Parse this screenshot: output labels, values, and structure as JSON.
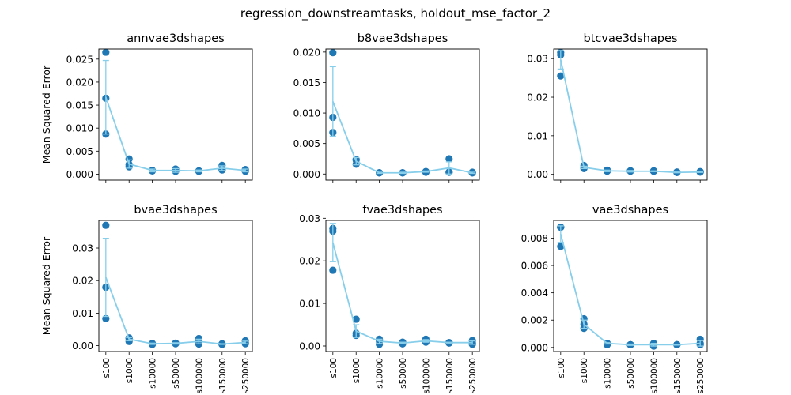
{
  "suptitle": "regression_downstreamtasks, holdout_mse_factor_2",
  "colors": {
    "line": "#87CEEB",
    "point": "#1f77b4",
    "axis": "#000000"
  },
  "chart_data": [
    {
      "type": "line",
      "title": "annvae3dshapes",
      "ylabel": "Mean Squared Error",
      "categories": [
        "s100",
        "s1000",
        "s10000",
        "s50000",
        "s100000",
        "s150000",
        "s250000"
      ],
      "ylim": [
        -0.0013,
        0.0272
      ],
      "yticks": [
        0.0,
        0.005,
        0.01,
        0.015,
        0.02,
        0.025
      ],
      "ytick_labels": [
        "0.000",
        "0.005",
        "0.010",
        "0.015",
        "0.020",
        "0.025"
      ],
      "show_xticklabels": false,
      "mean": [
        0.0167,
        0.0022,
        0.0008,
        0.0008,
        0.0007,
        0.0013,
        0.0008
      ],
      "err": [
        0.008,
        0.0009,
        0.0003,
        0.0004,
        0.0002,
        0.0005,
        0.0003
      ],
      "points": [
        [
          0.0265,
          0.0087,
          0.0165
        ],
        [
          0.0033,
          0.0016,
          0.0021
        ],
        [
          0.0008,
          0.0008,
          0.0007
        ],
        [
          0.0011,
          0.0007,
          0.0006
        ],
        [
          0.0007,
          0.0006,
          0.0007
        ],
        [
          0.0019,
          0.001,
          0.0009
        ],
        [
          0.001,
          0.0006,
          0.0007
        ]
      ]
    },
    {
      "type": "line",
      "title": "b8vae3dshapes",
      "ylabel": "",
      "categories": [
        "s100",
        "s1000",
        "s10000",
        "s50000",
        "s100000",
        "s150000",
        "s250000"
      ],
      "ylim": [
        -0.001,
        0.0205
      ],
      "yticks": [
        0.0,
        0.005,
        0.01,
        0.015,
        0.02
      ],
      "ytick_labels": [
        "0.000",
        "0.005",
        "0.010",
        "0.015",
        "0.020"
      ],
      "show_xticklabels": false,
      "mean": [
        0.0119,
        0.0021,
        0.0002,
        0.0002,
        0.0004,
        0.001,
        0.0002
      ],
      "err": [
        0.0057,
        0.0006,
        0.0001,
        0.0001,
        0.0001,
        0.001,
        0.0001
      ],
      "points": [
        [
          0.0199,
          0.0068,
          0.0093
        ],
        [
          0.0024,
          0.0016,
          0.0023
        ],
        [
          0.0002,
          0.0002,
          0.0002
        ],
        [
          0.0002,
          0.0002,
          0.0002
        ],
        [
          0.0004,
          0.0003,
          0.0004
        ],
        [
          0.0025,
          0.0003,
          0.0003
        ],
        [
          0.0002,
          0.0002,
          0.0003
        ]
      ]
    },
    {
      "type": "line",
      "title": "btcvae3dshapes",
      "ylabel": "",
      "categories": [
        "s100",
        "s1000",
        "s10000",
        "s50000",
        "s100000",
        "s150000",
        "s250000"
      ],
      "ylim": [
        -0.0015,
        0.0325
      ],
      "yticks": [
        0.0,
        0.01,
        0.02,
        0.03
      ],
      "ytick_labels": [
        "0.00",
        "0.01",
        "0.02",
        "0.03"
      ],
      "show_xticklabels": false,
      "mean": [
        0.0297,
        0.0018,
        0.0009,
        0.0008,
        0.0008,
        0.0005,
        0.0006
      ],
      "err": [
        0.0024,
        0.0003,
        0.0002,
        0.0002,
        0.0001,
        0.0001,
        0.0001
      ],
      "points": [
        [
          0.0316,
          0.0255,
          0.031
        ],
        [
          0.0023,
          0.0015,
          0.0018
        ],
        [
          0.0011,
          0.0008,
          0.0009
        ],
        [
          0.0009,
          0.0008,
          0.0009
        ],
        [
          0.0009,
          0.0008,
          0.0008
        ],
        [
          0.0005,
          0.0005,
          0.0006
        ],
        [
          0.0006,
          0.0006,
          0.0007
        ]
      ]
    },
    {
      "type": "line",
      "title": "bvae3dshapes",
      "ylabel": "Mean Squared Error",
      "categories": [
        "s100",
        "s1000",
        "s10000",
        "s50000",
        "s100000",
        "s150000",
        "s250000"
      ],
      "ylim": [
        -0.0018,
        0.0385
      ],
      "yticks": [
        0.0,
        0.01,
        0.02,
        0.03
      ],
      "ytick_labels": [
        "0.00",
        "0.01",
        "0.02",
        "0.03"
      ],
      "show_xticklabels": true,
      "mean": [
        0.021,
        0.002,
        0.0006,
        0.0007,
        0.0013,
        0.0005,
        0.001
      ],
      "err": [
        0.012,
        0.0005,
        0.0002,
        0.0002,
        0.0007,
        0.0001,
        0.0004
      ],
      "points": [
        [
          0.037,
          0.0083,
          0.018
        ],
        [
          0.0024,
          0.0013,
          0.0022
        ],
        [
          0.0006,
          0.0004,
          0.0007
        ],
        [
          0.0008,
          0.0006,
          0.0007
        ],
        [
          0.0022,
          0.0005,
          0.0013
        ],
        [
          0.0006,
          0.0004,
          0.0005
        ],
        [
          0.0015,
          0.0006,
          0.0009
        ]
      ]
    },
    {
      "type": "line",
      "title": "fvae3dshapes",
      "ylabel": "",
      "categories": [
        "s100",
        "s1000",
        "s10000",
        "s50000",
        "s100000",
        "s150000",
        "s250000"
      ],
      "ylim": [
        -0.0013,
        0.0295
      ],
      "yticks": [
        0.0,
        0.01,
        0.02,
        0.03
      ],
      "ytick_labels": [
        "0.00",
        "0.01",
        "0.02",
        "0.03"
      ],
      "show_xticklabels": true,
      "mean": [
        0.0243,
        0.0035,
        0.0011,
        0.0007,
        0.0012,
        0.0008,
        0.0008
      ],
      "err": [
        0.0045,
        0.0015,
        0.0005,
        0.0002,
        0.0003,
        0.0001,
        0.0004
      ],
      "points": [
        [
          0.0276,
          0.0178,
          0.027
        ],
        [
          0.0063,
          0.0025,
          0.003
        ],
        [
          0.0016,
          0.0004,
          0.0012
        ],
        [
          0.0009,
          0.0005,
          0.0007
        ],
        [
          0.0016,
          0.0009,
          0.0011
        ],
        [
          0.0008,
          0.0007,
          0.0008
        ],
        [
          0.0013,
          0.0004,
          0.0007
        ]
      ]
    },
    {
      "type": "line",
      "title": "vae3dshapes",
      "ylabel": "",
      "categories": [
        "s100",
        "s1000",
        "s10000",
        "s50000",
        "s100000",
        "s150000",
        "s250000"
      ],
      "ylim": [
        -0.0003,
        0.0093
      ],
      "yticks": [
        0.0,
        0.002,
        0.004,
        0.006,
        0.008
      ],
      "ytick_labels": [
        "0.000",
        "0.002",
        "0.004",
        "0.006",
        "0.008"
      ],
      "show_xticklabels": true,
      "mean": [
        0.0083,
        0.0017,
        0.0003,
        0.0002,
        0.0002,
        0.0002,
        0.0003
      ],
      "err": [
        0.0006,
        0.0003,
        5e-05,
        5e-05,
        0.0001,
        3e-05,
        0.0002
      ],
      "points": [
        [
          0.0088,
          0.0074,
          0.0088
        ],
        [
          0.0021,
          0.0014,
          0.0017
        ],
        [
          0.0003,
          0.0003,
          0.0002
        ],
        [
          0.0002,
          0.0002,
          0.0002
        ],
        [
          0.0003,
          0.0002,
          0.0001
        ],
        [
          0.0002,
          0.0002,
          0.0002
        ],
        [
          0.0006,
          0.0002,
          0.0003
        ]
      ]
    }
  ]
}
